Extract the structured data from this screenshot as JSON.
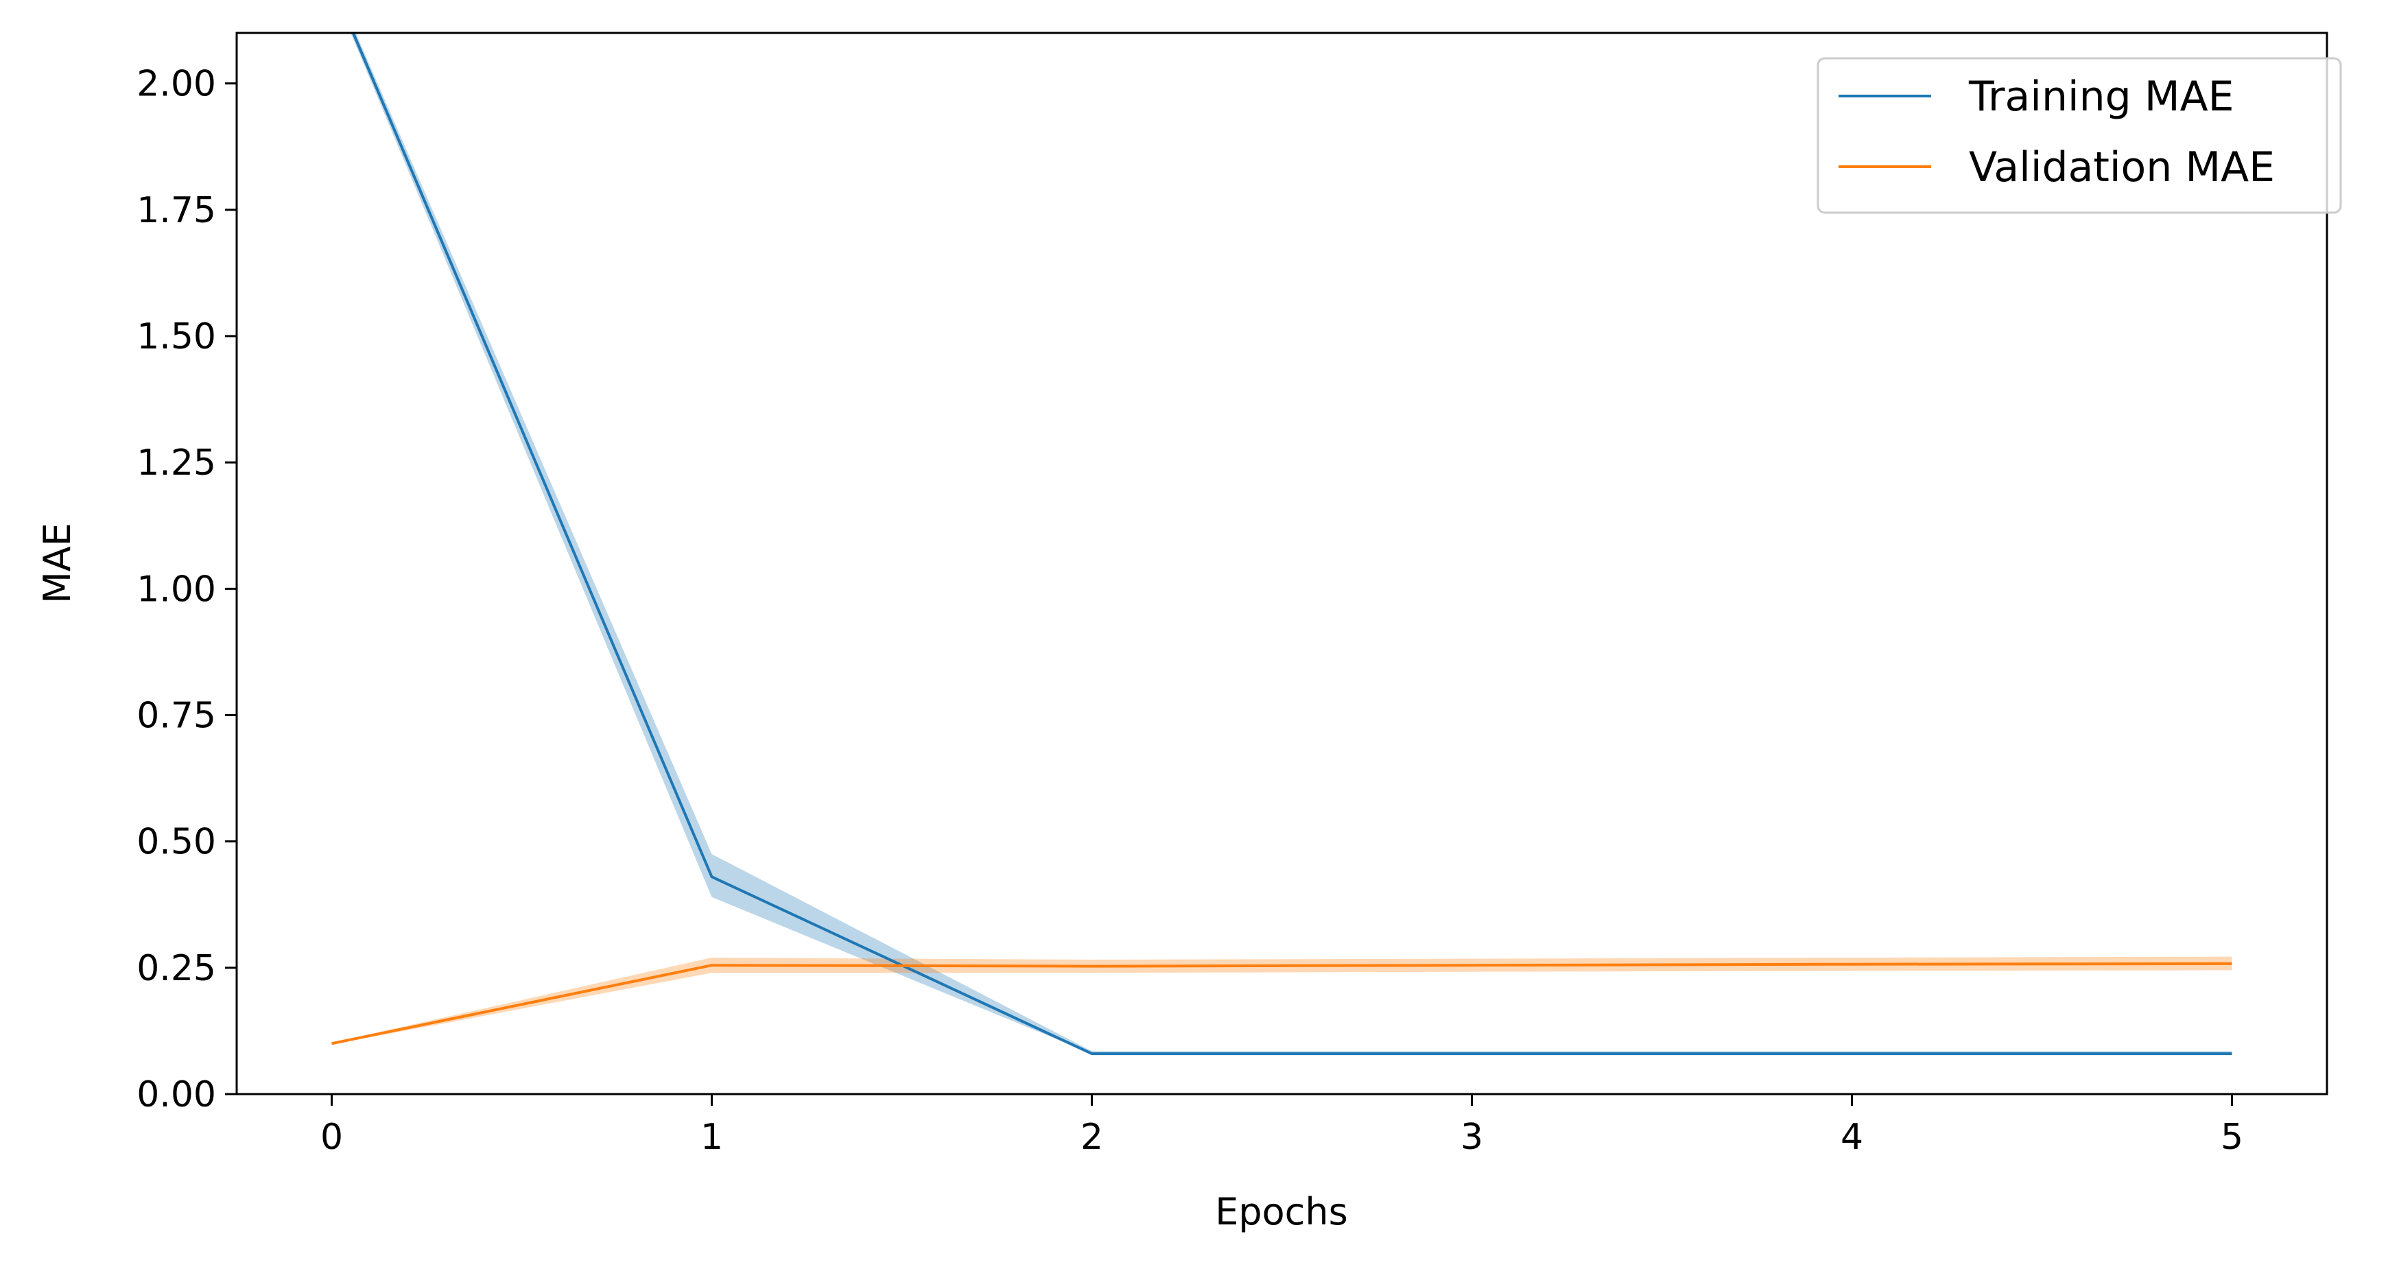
{
  "chart_data": {
    "type": "line",
    "title": "",
    "xlabel": "Epochs",
    "ylabel": "MAE",
    "xlim": [
      -0.25,
      5.25
    ],
    "ylim": [
      0,
      2.1
    ],
    "x": [
      0,
      1,
      2,
      3,
      4,
      5
    ],
    "x_ticks": [
      0,
      1,
      2,
      3,
      4,
      5
    ],
    "x_tick_labels": [
      "0",
      "1",
      "2",
      "3",
      "4",
      "5"
    ],
    "y_ticks": [
      0,
      0.25,
      0.5,
      0.75,
      1.0,
      1.25,
      1.5,
      1.75,
      2.0
    ],
    "y_tick_labels": [
      "0.00",
      "0.25",
      "0.50",
      "0.75",
      "1.00",
      "1.25",
      "1.50",
      "1.75",
      "2.00"
    ],
    "grid": false,
    "legend_position": "top-right",
    "series": [
      {
        "name": "Training MAE",
        "color": "#1f77b4",
        "values": [
          2.2,
          0.43,
          0.08,
          0.08,
          0.08,
          0.08
        ],
        "band_lower": [
          2.19,
          0.39,
          0.08,
          0.08,
          0.08,
          0.08
        ],
        "band_upper": [
          2.21,
          0.475,
          0.085,
          0.085,
          0.085,
          0.085
        ]
      },
      {
        "name": "Validation MAE",
        "color": "#ff7f0e",
        "values": [
          0.1,
          0.255,
          0.253,
          0.255,
          0.257,
          0.258
        ],
        "band_lower": [
          0.098,
          0.24,
          0.24,
          0.242,
          0.244,
          0.245
        ],
        "band_upper": [
          0.102,
          0.27,
          0.266,
          0.268,
          0.27,
          0.272
        ]
      }
    ]
  }
}
